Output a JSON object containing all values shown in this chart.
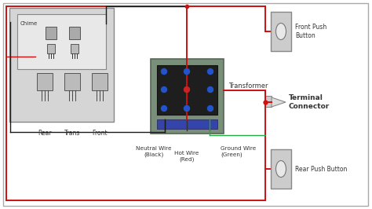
{
  "bg_color": "#ffffff",
  "wire_red": "#cc1111",
  "wire_black": "#1a1a1a",
  "wire_green": "#22aa44",
  "chime_outer_color": "#d5d5d5",
  "chime_outer_border": "#888888",
  "chime_inner_color": "#e8e8e8",
  "transformer_outer": "#7a8f7a",
  "transformer_inner": "#1e1e1e",
  "transformer_blue": "#2255cc",
  "transformer_red_dot": "#cc2222",
  "transformer_terminal_blue": "#3344aa",
  "button_color": "#cccccc",
  "button_border": "#888888",
  "button_oval_color": "#e8e8e8",
  "connector_color": "#d0d0d0",
  "text_color": "#333333",
  "border_color": "#aaaaaa",
  "labels": {
    "chime": "Chime",
    "rear": "Rear",
    "trans": "Trans",
    "front": "Front",
    "transformer": "Transformer",
    "neutral": "Neutral Wire\n(Black)",
    "hot": "Hot Wire\n(Red)",
    "ground": "Ground Wire\n(Green)",
    "front_btn": "Front Push\nButton",
    "rear_btn": "Rear Push Button",
    "terminal": "Terminal\nConnector"
  },
  "lw_main": 1.4,
  "lw_thin": 1.0
}
